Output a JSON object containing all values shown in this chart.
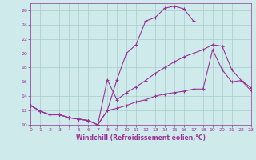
{
  "xlabel": "Windchill (Refroidissement éolien,°C)",
  "bg_color": "#ceeaea",
  "grid_color": "#a8cccc",
  "line_color": "#993399",
  "xlim": [
    0,
    23
  ],
  "ylim": [
    10,
    27
  ],
  "yticks": [
    10,
    12,
    14,
    16,
    18,
    20,
    22,
    24,
    26
  ],
  "xticks": [
    0,
    1,
    2,
    3,
    4,
    5,
    6,
    7,
    8,
    9,
    10,
    11,
    12,
    13,
    14,
    15,
    16,
    17,
    18,
    19,
    20,
    21,
    22,
    23
  ],
  "line1_x": [
    0,
    1,
    2,
    3,
    4,
    5,
    6,
    7,
    8,
    9,
    10,
    11,
    12,
    13,
    14,
    15,
    16,
    17
  ],
  "line1_y": [
    12.7,
    11.9,
    11.4,
    11.4,
    11.0,
    10.8,
    10.6,
    10.0,
    12.0,
    16.3,
    20.0,
    21.2,
    24.5,
    25.0,
    26.3,
    26.6,
    26.2,
    24.5
  ],
  "line2_x": [
    0,
    1,
    2,
    3,
    4,
    5,
    6,
    7,
    8,
    9,
    10,
    11,
    12,
    13,
    14,
    15,
    16,
    17,
    18,
    19,
    20,
    21,
    22,
    23
  ],
  "line2_y": [
    12.7,
    11.9,
    11.4,
    11.4,
    11.0,
    10.8,
    10.6,
    10.0,
    12.0,
    12.3,
    12.7,
    13.2,
    13.5,
    14.0,
    14.3,
    14.5,
    14.7,
    15.0,
    15.0,
    20.5,
    17.7,
    16.0,
    16.2,
    14.8
  ],
  "line3_x": [
    0,
    1,
    2,
    3,
    4,
    5,
    6,
    7,
    8,
    9,
    10,
    11,
    12,
    13,
    14,
    15,
    16,
    17,
    18,
    19,
    20,
    21,
    22,
    23
  ],
  "line3_y": [
    12.7,
    11.9,
    11.4,
    11.4,
    11.0,
    10.8,
    10.6,
    10.0,
    16.3,
    13.5,
    14.5,
    15.3,
    16.2,
    17.2,
    18.0,
    18.8,
    19.5,
    20.0,
    20.5,
    21.2,
    21.0,
    17.7,
    16.2,
    15.2
  ]
}
